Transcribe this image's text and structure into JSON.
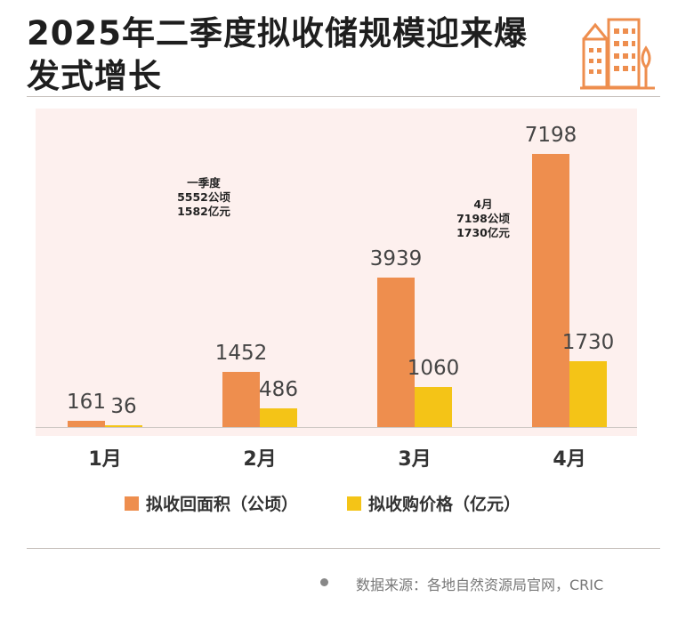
{
  "title": "2025年二季度拟收储规模迎来爆发式增长",
  "colors": {
    "area": "#ee8e4e",
    "price": "#f4c417",
    "panel": "#fdf0ee"
  },
  "logo_icon": "buildings-icon",
  "annotations": {
    "q1": {
      "line1": "一季度",
      "line2": "5552公顷",
      "line3": "1582亿元"
    },
    "april": {
      "line1": "4月",
      "line2": "7198公顷",
      "line3": "1730亿元"
    }
  },
  "legend": {
    "area": "拟收回面积（公顷）",
    "price": "拟收购价格（亿元）"
  },
  "source": "数据来源：各地自然资源局官网，CRIC",
  "chart_data": {
    "type": "bar",
    "title": "2025年二季度拟收储规模迎来爆发式增长",
    "categories": [
      "1月",
      "2月",
      "3月",
      "4月"
    ],
    "series": [
      {
        "name": "拟收回面积（公顷）",
        "values": [
          161,
          1452,
          3939,
          7198
        ]
      },
      {
        "name": "拟收购价格（亿元）",
        "values": [
          36,
          486,
          1060,
          1730
        ]
      }
    ],
    "xlabel": "",
    "ylabel": "",
    "ylim": [
      0,
      7600
    ],
    "grid": false,
    "legend_position": "bottom"
  }
}
